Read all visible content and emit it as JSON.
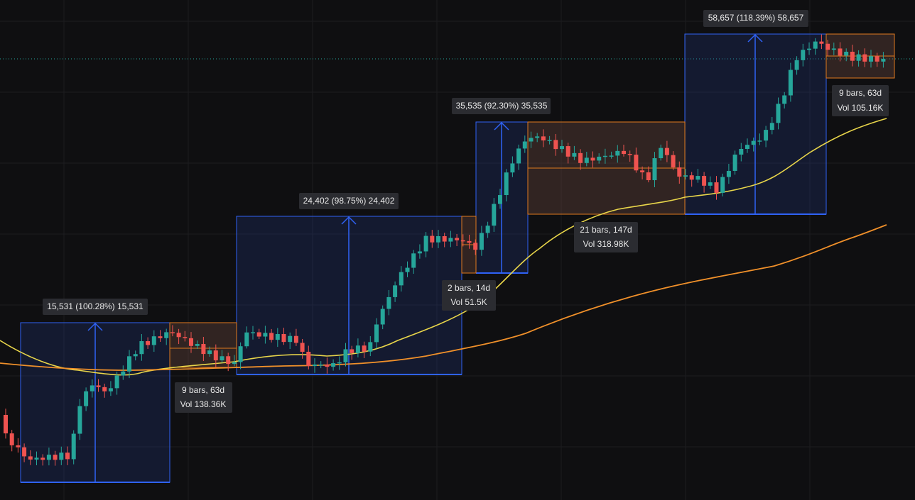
{
  "measurements": [
    {
      "label": "15,531 (100.28%) 15,531"
    },
    {
      "label": "24,402 (98.75%) 24,402"
    },
    {
      "label": "35,535 (92.30%) 35,535"
    },
    {
      "label": "58,657 (118.39%) 58,657"
    }
  ],
  "ranges": [
    {
      "bars": "9 bars, 63d",
      "volume": "Vol 138.36K"
    },
    {
      "bars": "2 bars, 14d",
      "volume": "Vol 51.5K"
    },
    {
      "bars": "21 bars, 147d",
      "volume": "Vol 318.98K"
    },
    {
      "bars": "9 bars, 63d",
      "volume": "Vol 105.16K"
    }
  ]
}
